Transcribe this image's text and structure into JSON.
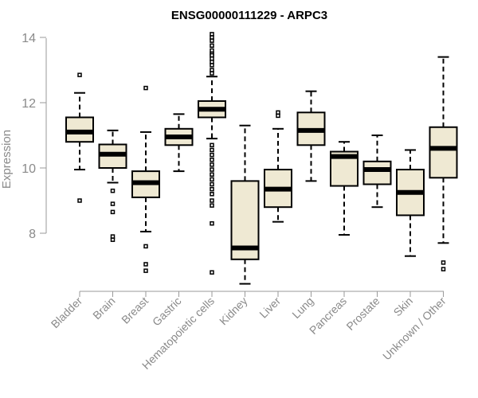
{
  "chart_data": {
    "type": "boxplot",
    "title": "ENSG00000111229 - ARPC3",
    "xlabel": "",
    "ylabel": "Expression",
    "ylim": [
      6.2,
      14.3
    ],
    "yticks": [
      8,
      10,
      12,
      14
    ],
    "box_color": "#EFE9D3",
    "categories": [
      "Bladder",
      "Brain",
      "Breast",
      "Gastric",
      "Hematopoietic cells",
      "Kidney",
      "Liver",
      "Lung",
      "Pancreas",
      "Prostate",
      "Skin",
      "Unknown / Other"
    ],
    "boxes": [
      {
        "name": "Bladder",
        "min": 9.95,
        "q1": 10.8,
        "median": 11.1,
        "q3": 11.55,
        "max": 12.3,
        "outliers": [
          12.85,
          9.0
        ]
      },
      {
        "name": "Brain",
        "min": 9.55,
        "q1": 10.0,
        "median": 10.42,
        "q3": 10.72,
        "max": 11.15,
        "outliers": [
          9.3,
          8.9,
          8.65,
          7.9,
          7.8
        ]
      },
      {
        "name": "Breast",
        "min": 8.05,
        "q1": 9.1,
        "median": 9.55,
        "q3": 9.9,
        "max": 11.1,
        "outliers": [
          12.45,
          7.6,
          7.05,
          6.85
        ]
      },
      {
        "name": "Gastric",
        "min": 9.9,
        "q1": 10.7,
        "median": 10.95,
        "q3": 11.2,
        "max": 11.65,
        "outliers": []
      },
      {
        "name": "Hematopoietic cells",
        "min": 10.9,
        "q1": 11.55,
        "median": 11.8,
        "q3": 12.05,
        "max": 12.8,
        "outliers": [
          14.1,
          14.0,
          13.9,
          13.75,
          13.6,
          13.5,
          13.45,
          13.35,
          13.25,
          13.15,
          13.0,
          12.9,
          10.7,
          10.55,
          10.4,
          10.25,
          10.1,
          9.95,
          9.8,
          9.65,
          9.5,
          9.35,
          9.2,
          9.0,
          8.85,
          8.3,
          6.8
        ]
      },
      {
        "name": "Kidney",
        "min": 6.45,
        "q1": 7.2,
        "median": 7.55,
        "q3": 9.6,
        "max": 11.3,
        "outliers": []
      },
      {
        "name": "Liver",
        "min": 8.35,
        "q1": 8.8,
        "median": 9.35,
        "q3": 9.95,
        "max": 11.2,
        "outliers": [
          11.7,
          11.6
        ]
      },
      {
        "name": "Lung",
        "min": 9.6,
        "q1": 10.7,
        "median": 11.15,
        "q3": 11.7,
        "max": 12.35,
        "outliers": []
      },
      {
        "name": "Pancreas",
        "min": 7.95,
        "q1": 9.45,
        "median": 10.35,
        "q3": 10.5,
        "max": 10.8,
        "outliers": []
      },
      {
        "name": "Prostate",
        "min": 8.8,
        "q1": 9.5,
        "median": 9.95,
        "q3": 10.2,
        "max": 11.0,
        "outliers": []
      },
      {
        "name": "Skin",
        "min": 7.3,
        "q1": 8.55,
        "median": 9.25,
        "q3": 9.95,
        "max": 10.55,
        "outliers": []
      },
      {
        "name": "Unknown / Other",
        "min": 7.7,
        "q1": 9.7,
        "median": 10.6,
        "q3": 11.25,
        "max": 13.4,
        "outliers": [
          7.1,
          6.9
        ]
      }
    ]
  }
}
